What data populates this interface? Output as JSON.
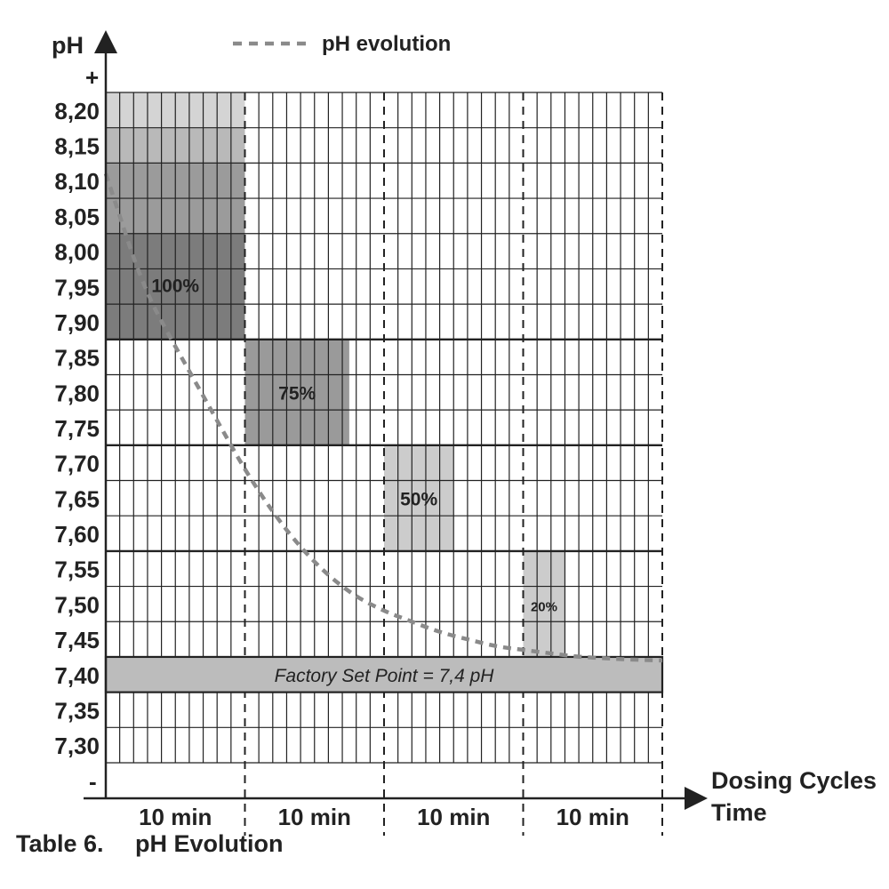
{
  "chart_data": {
    "type": "area",
    "title": "",
    "ylabel": "pH",
    "ylabel_plus": "+",
    "ylabel_minus": "-",
    "xlabel_line1": "Dosing Cycles",
    "xlabel_line2": "Time",
    "legend": "pH evolution",
    "y_ticks": [
      "8,20",
      "8,15",
      "8,10",
      "8,05",
      "8,00",
      "7,95",
      "7,90",
      "7,85",
      "7,80",
      "7,75",
      "7,70",
      "7,65",
      "7,60",
      "7,55",
      "7,50",
      "7,45",
      "7,40",
      "7,35",
      "7,30"
    ],
    "y_range": [
      7.275,
      8.225
    ],
    "x_range_min": [
      0,
      40
    ],
    "x_ticks": [
      "10 min",
      "10 min",
      "10 min",
      "10 min"
    ],
    "dosing_blocks": [
      {
        "label": "100%",
        "x_start_min": 0,
        "x_end_min": 10,
        "ph_from": 7.875,
        "ph_to": 8.225
      },
      {
        "label": "75%",
        "x_start_min": 10,
        "x_end_min": 17.5,
        "ph_from": 7.725,
        "ph_to": 7.875
      },
      {
        "label": "50%",
        "x_start_min": 20,
        "x_end_min": 25,
        "ph_from": 7.575,
        "ph_to": 7.725
      },
      {
        "label": "20%",
        "x_start_min": 30,
        "x_end_min": 33,
        "ph_from": 7.425,
        "ph_to": 7.575
      }
    ],
    "setpoint": {
      "label": "Factory Set Point = 7,4 pH",
      "ph_from": 7.375,
      "ph_to": 7.425
    },
    "series": [
      {
        "name": "pH evolution",
        "x": [
          0,
          1,
          2,
          3,
          4,
          6,
          8,
          10,
          12,
          14,
          16,
          18,
          20,
          22,
          24,
          26,
          28,
          30,
          32,
          34,
          36,
          38,
          40
        ],
        "y": [
          8.11,
          8.05,
          7.99,
          7.94,
          7.9,
          7.83,
          7.76,
          7.69,
          7.63,
          7.58,
          7.54,
          7.51,
          7.49,
          7.475,
          7.46,
          7.45,
          7.44,
          7.435,
          7.43,
          7.425,
          7.423,
          7.421,
          7.42
        ]
      }
    ],
    "grid": true,
    "legend_position": "top-center"
  },
  "caption": {
    "table_number": "Table 6.",
    "title": "pH Evolution"
  },
  "colors": {
    "block_100_band1": "#d4d4d4",
    "block_100_band2": "#b9b9b9",
    "block_100_band3": "#9b9b9b",
    "block_100_band4": "#7c7c7c",
    "block_75": "#9a9a9a",
    "block_50": "#cccccc",
    "block_20": "#cccccc",
    "setpoint": "#bcbcbc",
    "curve": "#8a8a8a",
    "grid": "#222222"
  }
}
